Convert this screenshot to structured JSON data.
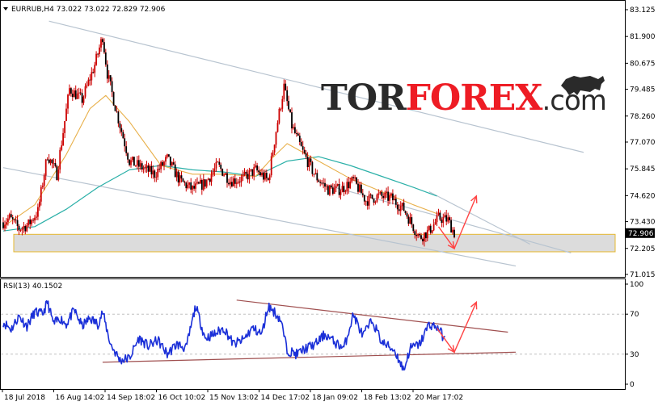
{
  "chart_data": [
    {
      "type": "candlestick",
      "symbol_header": "EURRUB,H4  73.022 73.022 72.829 72.906",
      "y_ticks": [
        "83.125",
        "81.900",
        "80.675",
        "79.485",
        "78.260",
        "77.070",
        "75.845",
        "74.620",
        "73.430",
        "72.205",
        "71.015"
      ],
      "ylim": [
        71.015,
        83.125
      ],
      "current_price": 72.906,
      "current_price_label": "72.906",
      "price": [
        [
          0,
          73.4
        ],
        [
          4,
          73.6
        ],
        [
          10,
          73.1
        ],
        [
          16,
          73.3
        ],
        [
          22,
          73.9
        ],
        [
          28,
          76.5
        ],
        [
          34,
          75.6
        ],
        [
          42,
          79.5
        ],
        [
          50,
          79.0
        ],
        [
          58,
          80.6
        ],
        [
          63,
          81.9
        ],
        [
          66,
          80.2
        ],
        [
          72,
          78.4
        ],
        [
          80,
          76.2
        ],
        [
          88,
          75.9
        ],
        [
          96,
          75.6
        ],
        [
          104,
          76.3
        ],
        [
          112,
          75.3
        ],
        [
          120,
          74.9
        ],
        [
          128,
          75.2
        ],
        [
          136,
          76.0
        ],
        [
          144,
          75.3
        ],
        [
          152,
          75.4
        ],
        [
          160,
          75.8
        ],
        [
          168,
          75.3
        ],
        [
          173,
          77.6
        ],
        [
          178,
          79.6
        ],
        [
          183,
          77.8
        ],
        [
          190,
          76.6
        ],
        [
          198,
          75.5
        ],
        [
          206,
          74.9
        ],
        [
          214,
          74.9
        ],
        [
          222,
          75.3
        ],
        [
          230,
          74.4
        ],
        [
          238,
          74.6
        ],
        [
          246,
          74.5
        ],
        [
          254,
          74.0
        ],
        [
          260,
          73.2
        ],
        [
          264,
          72.7
        ],
        [
          270,
          73.0
        ],
        [
          276,
          73.6
        ],
        [
          282,
          73.5
        ],
        [
          286,
          72.9
        ]
      ],
      "ma_slow": [
        [
          0,
          73.0
        ],
        [
          20,
          73.2
        ],
        [
          40,
          74.0
        ],
        [
          60,
          75.0
        ],
        [
          80,
          75.8
        ],
        [
          100,
          76.0
        ],
        [
          120,
          75.8
        ],
        [
          140,
          75.7
        ],
        [
          160,
          75.5
        ],
        [
          180,
          76.2
        ],
        [
          200,
          76.4
        ],
        [
          220,
          76.0
        ],
        [
          240,
          75.5
        ],
        [
          260,
          75.0
        ],
        [
          275,
          74.6
        ]
      ],
      "ma_fast": [
        [
          0,
          73.2
        ],
        [
          20,
          74.2
        ],
        [
          40,
          76.5
        ],
        [
          55,
          78.6
        ],
        [
          65,
          79.2
        ],
        [
          80,
          78.0
        ],
        [
          100,
          76.0
        ],
        [
          120,
          75.6
        ],
        [
          140,
          75.6
        ],
        [
          160,
          75.5
        ],
        [
          170,
          76.3
        ],
        [
          180,
          77.0
        ],
        [
          200,
          76.2
        ],
        [
          220,
          75.4
        ],
        [
          240,
          74.8
        ],
        [
          260,
          74.2
        ],
        [
          275,
          73.8
        ]
      ],
      "channel_upper": [
        [
          29,
          82.6
        ],
        [
          368,
          76.6
        ]
      ],
      "channel_lower": [
        [
          0,
          75.9
        ],
        [
          325,
          71.4
        ]
      ],
      "support_zone": [
        72.05,
        72.85
      ],
      "forecast_down": [
        [
          276,
          73.2
        ],
        [
          286,
          72.2
        ]
      ],
      "forecast_up": [
        [
          286,
          72.2
        ],
        [
          300,
          74.6
        ]
      ]
    },
    {
      "type": "line",
      "indicator_header": "RSI(13) 40.1502",
      "y_ticks": [
        "100",
        "70",
        "30",
        "0"
      ],
      "ylim": [
        0,
        100
      ],
      "levels": [
        30,
        70
      ],
      "rsi": [
        [
          0,
          62
        ],
        [
          5,
          55
        ],
        [
          10,
          68
        ],
        [
          15,
          58
        ],
        [
          20,
          72
        ],
        [
          25,
          70
        ],
        [
          28,
          82
        ],
        [
          32,
          60
        ],
        [
          36,
          66
        ],
        [
          40,
          60
        ],
        [
          45,
          74
        ],
        [
          50,
          58
        ],
        [
          55,
          66
        ],
        [
          60,
          60
        ],
        [
          63,
          72
        ],
        [
          68,
          40
        ],
        [
          74,
          24
        ],
        [
          80,
          26
        ],
        [
          86,
          46
        ],
        [
          92,
          38
        ],
        [
          98,
          44
        ],
        [
          104,
          30
        ],
        [
          110,
          40
        ],
        [
          116,
          36
        ],
        [
          122,
          78
        ],
        [
          128,
          46
        ],
        [
          134,
          50
        ],
        [
          140,
          56
        ],
        [
          146,
          40
        ],
        [
          152,
          44
        ],
        [
          158,
          56
        ],
        [
          164,
          50
        ],
        [
          168,
          78
        ],
        [
          172,
          72
        ],
        [
          176,
          64
        ],
        [
          180,
          34
        ],
        [
          186,
          30
        ],
        [
          192,
          36
        ],
        [
          198,
          40
        ],
        [
          204,
          50
        ],
        [
          210,
          42
        ],
        [
          216,
          36
        ],
        [
          222,
          70
        ],
        [
          228,
          48
        ],
        [
          234,
          64
        ],
        [
          240,
          42
        ],
        [
          248,
          34
        ],
        [
          254,
          14
        ],
        [
          258,
          36
        ],
        [
          264,
          40
        ],
        [
          270,
          60
        ],
        [
          276,
          56
        ],
        [
          280,
          44
        ]
      ],
      "trend_upper": [
        [
          148,
          84
        ],
        [
          320,
          52
        ]
      ],
      "trend_lower": [
        [
          63,
          22
        ],
        [
          325,
          32
        ]
      ],
      "forecast_down": [
        [
          275,
          56
        ],
        [
          286,
          32
        ]
      ],
      "forecast_up": [
        [
          286,
          32
        ],
        [
          300,
          82
        ]
      ]
    }
  ],
  "x_ticks": [
    "18 Jul 2018",
    "16 Aug 14:02",
    "14 Sep 18:02",
    "16 Oct 10:02",
    "15 Nov 13:02",
    "14 Dec 17:02",
    "18 Jan 09:02",
    "18 Feb 13:02",
    "20 Mar 17:02"
  ],
  "watermark": {
    "part1": "TOR",
    "part2": "FOREX",
    "part3": ".com"
  },
  "colors": {
    "candle": "#cc0000",
    "ma_fast": "#e8b04a",
    "ma_slow": "#2bb0a8",
    "channel": "#b8c4d0",
    "rsi": "#1a2fd8",
    "rsi_trend": "#a05050",
    "forecast": "#ff4444",
    "zone_fill": "#dcdcdc",
    "zone_border": "#e6b830",
    "watermark_dark": "#2a2a2a",
    "watermark_red": "#ee1c24",
    "price_label_bg": "#000000"
  }
}
